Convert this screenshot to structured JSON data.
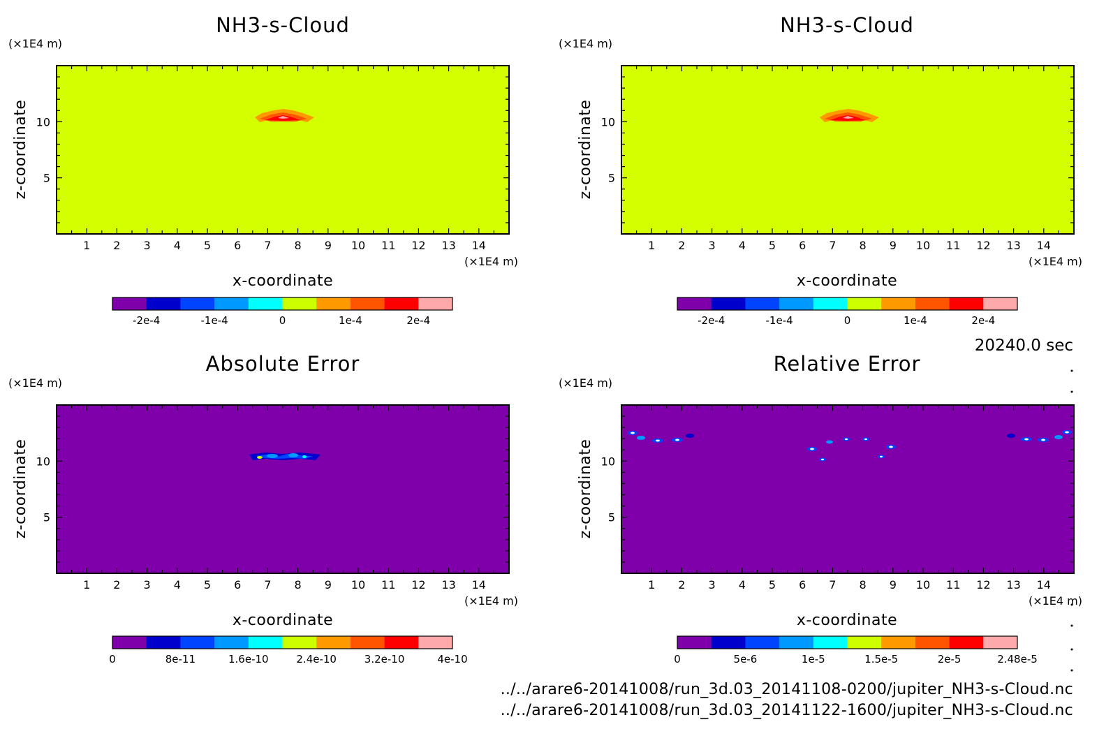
{
  "colors": {
    "background": "#ffffff",
    "field_uniform": "#d4ff00",
    "field_error": "#7f00aa",
    "colormap": [
      "#7f00aa",
      "#0000cc",
      "#0044ff",
      "#0099ff",
      "#00ffff",
      "#ccff00",
      "#ff9900",
      "#ff5500",
      "#ff0000",
      "#ffaaaa"
    ]
  },
  "time_label": "20240.0 sec",
  "files": [
    "../../arare6-20141008/run_3d.03_20141108-0200/jupiter_NH3-s-Cloud.nc",
    "../../arare6-20141008/run_3d.03_20141122-1600/jupiter_NH3-s-Cloud.nc"
  ],
  "chart_data": [
    {
      "type": "heatmap",
      "title": "NH3-s-Cloud",
      "xlabel": "x-coordinate",
      "ylabel": "z-coordinate",
      "x_unit": "(×1E4 m)",
      "y_unit": "(×1E4 m)",
      "xlim": [
        0,
        15
      ],
      "ylim": [
        0,
        15
      ],
      "x_ticks": [
        "1",
        "2",
        "3",
        "4",
        "5",
        "6",
        "7",
        "8",
        "9",
        "10",
        "11",
        "12",
        "13",
        "14"
      ],
      "y_ticks": [
        "5",
        "10"
      ],
      "colorbar_labels": [
        "-2e-4",
        "-1e-4",
        "0",
        "1e-4",
        "2e-4"
      ],
      "colorbar_levels": [
        -0.00025,
        0.00025
      ],
      "feature": "cloud layer near x=6.7-8.6, z=10-10.5, values up to ~2e-4"
    },
    {
      "type": "heatmap",
      "title": "NH3-s-Cloud",
      "xlabel": "x-coordinate",
      "ylabel": "z-coordinate",
      "x_unit": "(×1E4 m)",
      "y_unit": "(×1E4 m)",
      "xlim": [
        0,
        15
      ],
      "ylim": [
        0,
        15
      ],
      "x_ticks": [
        "1",
        "2",
        "3",
        "4",
        "5",
        "6",
        "7",
        "8",
        "9",
        "10",
        "11",
        "12",
        "13",
        "14"
      ],
      "y_ticks": [
        "5",
        "10"
      ],
      "colorbar_labels": [
        "-2e-4",
        "-1e-4",
        "0",
        "1e-4",
        "2e-4"
      ],
      "colorbar_levels": [
        -0.00025,
        0.00025
      ],
      "feature": "cloud layer near x=6.7-8.6, z=10-10.5, values up to ~2e-4"
    },
    {
      "type": "heatmap",
      "title": "Absolute Error",
      "xlabel": "x-coordinate",
      "ylabel": "z-coordinate",
      "x_unit": "(×1E4 m)",
      "y_unit": "(×1E4 m)",
      "xlim": [
        0,
        15
      ],
      "ylim": [
        0,
        15
      ],
      "x_ticks": [
        "1",
        "2",
        "3",
        "4",
        "5",
        "6",
        "7",
        "8",
        "9",
        "10",
        "11",
        "12",
        "13",
        "14"
      ],
      "y_ticks": [
        "5",
        "10"
      ],
      "colorbar_labels": [
        "0",
        "8e-11",
        "1.6e-10",
        "2.4e-10",
        "3.2e-10",
        "4e-10"
      ],
      "colorbar_levels": [
        0,
        4e-10
      ],
      "feature": "small error near x=6.6-8.8, z=10"
    },
    {
      "type": "heatmap",
      "title": "Relative Error",
      "xlabel": "x-coordinate",
      "ylabel": "z-coordinate",
      "x_unit": "(×1E4 m)",
      "y_unit": "(×1E4 m)",
      "xlim": [
        0,
        15
      ],
      "ylim": [
        0,
        15
      ],
      "x_ticks": [
        "1",
        "2",
        "3",
        "4",
        "5",
        "6",
        "7",
        "8",
        "9",
        "10",
        "11",
        "12",
        "13",
        "14"
      ],
      "y_ticks": [
        "5",
        "10"
      ],
      "colorbar_labels": [
        "0",
        "5e-6",
        "1e-5",
        "1.5e-5",
        "2e-5",
        "2.48e-5"
      ],
      "colorbar_levels": [
        0,
        2.48e-05
      ],
      "feature": "scattered errors near z=11-12.5 around the cloud edges"
    }
  ]
}
